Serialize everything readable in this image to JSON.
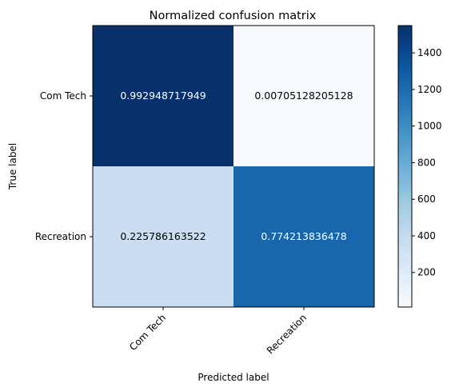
{
  "chart_data": {
    "type": "heatmap",
    "title": "Normalized confusion matrix",
    "xlabel": "Predicted label",
    "ylabel": "True label",
    "x_categories": [
      "Com Tech",
      "Recreation"
    ],
    "y_categories": [
      "Com Tech",
      "Recreation"
    ],
    "cell_labels": [
      [
        "0.992948717949",
        "0.00705128205128"
      ],
      [
        "0.225786163522",
        "0.774213836478"
      ]
    ],
    "color_values": [
      [
        1549,
        11
      ],
      [
        359,
        1231
      ]
    ],
    "colorbar": {
      "cmap": "Blues",
      "range": [
        11,
        1549
      ],
      "ticks": [
        200,
        400,
        600,
        800,
        1000,
        1200,
        1400
      ]
    },
    "colors": {
      "low": "#f7fbff",
      "high": "#08306b",
      "text_dark": "#000000",
      "text_light": "#ffffff"
    }
  }
}
